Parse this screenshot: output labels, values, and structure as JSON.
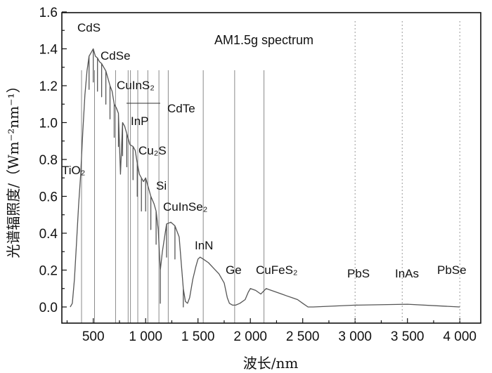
{
  "chart_data": {
    "type": "line",
    "title": "AM1.5g spectrum",
    "xlabel": "波长/nm",
    "ylabel": "光谱辐照度/（Wm⁻²nm⁻¹）",
    "xlim": [
      200,
      4200
    ],
    "ylim": [
      -0.05,
      1.6
    ],
    "x_ticks": [
      500,
      1000,
      1500,
      2000,
      2500,
      3000,
      3500,
      4000
    ],
    "x_tick_labels": [
      "500",
      "1 000",
      "1 500",
      "2 000",
      "2 500",
      "3 000",
      "3 500",
      "4 000"
    ],
    "y_ticks": [
      0.0,
      0.2,
      0.4,
      0.6,
      0.8,
      1.0,
      1.2,
      1.4,
      1.6
    ],
    "y_tick_labels": [
      "0.0",
      "0.2",
      "0.4",
      "0.6",
      "0.8",
      "1.0",
      "1.2",
      "1.4",
      "1.6"
    ],
    "grid": false,
    "series": [
      {
        "x": [
          280,
          300,
          320,
          340,
          360,
          380,
          400,
          420,
          440,
          460,
          480,
          500,
          520,
          540,
          560,
          580,
          600,
          620,
          640,
          660,
          680,
          700,
          720,
          740,
          760,
          780,
          800,
          820,
          850,
          880,
          900,
          920,
          940,
          960,
          980,
          1000,
          1020,
          1050,
          1080,
          1100,
          1120,
          1140,
          1160,
          1200,
          1240,
          1280,
          1320,
          1360,
          1380,
          1400,
          1420,
          1450,
          1480,
          1500,
          1520,
          1550,
          1600,
          1650,
          1700,
          1750,
          1780,
          1800,
          1830,
          1860,
          1900,
          1950,
          1980,
          2000,
          2050,
          2100,
          2150,
          2200,
          2250,
          2300,
          2350,
          2400,
          2450,
          2500,
          2550,
          2600,
          3000,
          3500,
          4000
        ],
        "y": [
          0.0,
          0.02,
          0.15,
          0.35,
          0.55,
          0.72,
          0.95,
          1.15,
          1.28,
          1.36,
          1.38,
          1.4,
          1.36,
          1.35,
          1.33,
          1.32,
          1.3,
          1.28,
          1.24,
          1.2,
          1.17,
          1.1,
          1.08,
          1.05,
          0.72,
          1.0,
          0.98,
          0.94,
          0.88,
          0.87,
          0.85,
          0.78,
          0.72,
          0.7,
          0.68,
          0.7,
          0.66,
          0.6,
          0.56,
          0.52,
          0.42,
          0.2,
          0.3,
          0.45,
          0.46,
          0.44,
          0.38,
          0.1,
          0.03,
          0.02,
          0.05,
          0.15,
          0.22,
          0.26,
          0.27,
          0.26,
          0.24,
          0.21,
          0.18,
          0.13,
          0.05,
          0.02,
          0.01,
          0.01,
          0.02,
          0.04,
          0.08,
          0.1,
          0.09,
          0.07,
          0.1,
          0.09,
          0.08,
          0.07,
          0.06,
          0.05,
          0.04,
          0.02,
          0.0,
          0.0,
          0.01,
          0.015,
          0.0
        ]
      }
    ],
    "annotations": [
      {
        "text": "CdS",
        "x": 512
      },
      {
        "text": "CdSe",
        "x": 713
      },
      {
        "text": "CuInS₂",
        "x": 833
      },
      {
        "text": "CdTe",
        "x": 855
      },
      {
        "text": "InP",
        "x": 925
      },
      {
        "text": "Cu₂S",
        "x": 1021
      },
      {
        "text": "Si",
        "x": 1127
      },
      {
        "text": "CuInSe₂",
        "x": 1216
      },
      {
        "text": "TiO₂",
        "x": 388
      },
      {
        "text": "InN",
        "x": 1550
      },
      {
        "text": "Ge",
        "x": 1850
      },
      {
        "text": "CuFeS₂",
        "x": 2130
      },
      {
        "text": "PbS",
        "x": 3000
      },
      {
        "text": "InAs",
        "x": 3450
      },
      {
        "text": "PbSe",
        "x": 4000
      }
    ]
  }
}
